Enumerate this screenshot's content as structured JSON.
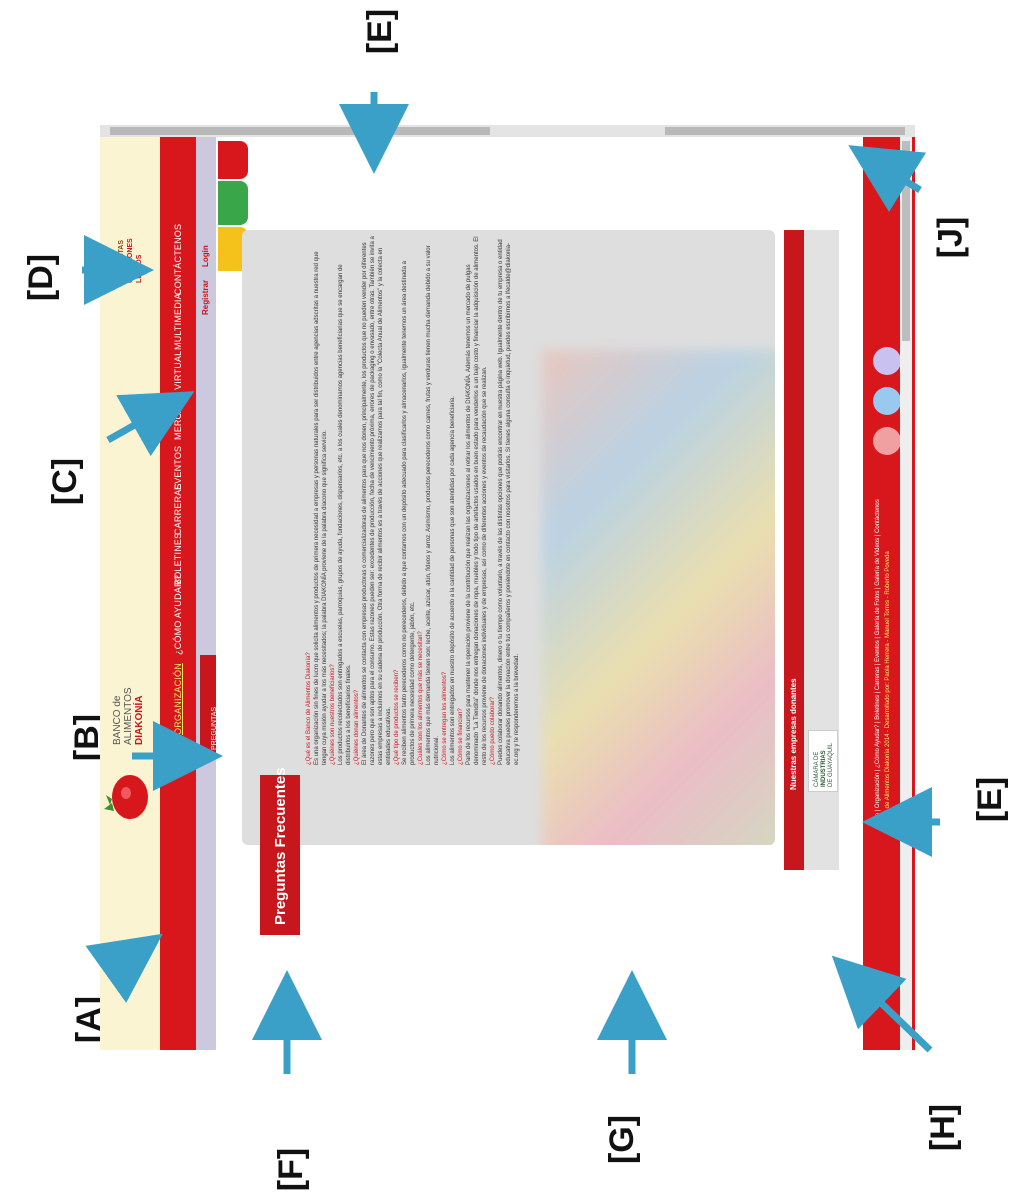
{
  "annotations": {
    "A": "[A]",
    "B": "[B]",
    "C": "[C]",
    "D": "[D]",
    "E_top": "[E]",
    "E_right": "[E]",
    "F": "[F]",
    "G": "[G]",
    "H": "[H]",
    "J": "[J]"
  },
  "brand": {
    "logo_line1": "BANCO de",
    "logo_line2": "ALIMENTOS",
    "logo_line3": "DIAKONÍA",
    "campaign_line1": "PANZAS",
    "campaign_line2": "CONTENTAS",
    "campaign_line3": "CORAZONES",
    "campaign_line4": "LLENOS"
  },
  "nav": {
    "items": [
      {
        "label": "INICIO"
      },
      {
        "label": "ORGANIZACIÓN"
      },
      {
        "label": "¿CÓMO AYUDAR?"
      },
      {
        "label": "BOLETINES"
      },
      {
        "label": "CARRERAS"
      },
      {
        "label": "EVENTOS"
      },
      {
        "label": "MERCADO VIRTUAL"
      },
      {
        "label": "MULTIMEDIA"
      },
      {
        "label": "CONTÁCTENOS"
      }
    ],
    "register": "Registrar",
    "login": "Login",
    "dropdown_item": "PREGUNTAS FRECUENTES"
  },
  "faq": {
    "title": "Preguntas Frecuentes",
    "items": [
      {
        "q": "¿Qué es el Banco de Alimentos Diakonía?",
        "a": "Es una organización sin fines de lucro que solicita alimentos y productos de primera necesidad a empresas y personas naturales para ser distribuidos entre agencias adscritas a nuestra red que tengan cuya misión ayudar a los más necesitados; la palabra DIAKONÍA proviene de la palabra diacono que significa servicio."
      },
      {
        "q": "¿Quiénes son nuestros beneficiarios?",
        "a": "Los productos recolectados son entregados a escuelas, parroquias, grupos de ayuda, fundaciones, dispensarios, etc. a los cuales denominamos agencias beneficiarias que se encargan de distribuirlos a los beneficiarios finales."
      },
      {
        "q": "¿Quiénes donan alimentos?",
        "a": "El área de Donantes de alimentos se contacta con empresas productoras o comercializadoras de alimentos para que nos donen, principalmente, los productos que no pueden vender por diferentes razones pero que son aptos para el consumo. Estas razones pueden ser: excedentes de producción, fecha de vencimiento próxima, errores de packaging o envasado, entre otras. También se invita a estas empresas a incluirnos en su cadena de producción. Otra forma de recibir alimentos es a través de acciones que realizamos para tal fin, como la \"Colecta Anual de Alimentos\" y la colecta en entidades educativas."
      },
      {
        "q": "¿Qué tipo de productos se reciben?",
        "a": "Se reciben alimentos tanto perecederos como no perecederos, debido a que contamos con un depósito adecuado para clasificarlos y almacenarlos, igualmente tenemos un área destinada a productos de primera necesidad como detergente, jabón, etc."
      },
      {
        "q": "¿Cuáles son los alimentos que más se necesitan?",
        "a": "Los alimentos que más demanda tienen son: leche, aceite, azúcar, atún, fideos y arroz. Asimismo, productos perecederos como carnes, frutas y verduras tienen mucha demanda debido a su valor nutricional."
      },
      {
        "q": "¿Cómo se entregan los alimentos?",
        "a": "Los alimentos son entregados en nuestro depósito de acuerdo a la cantidad de personas que son atendidas por cada agencia beneficiaria."
      },
      {
        "q": "¿Cómo se financian?",
        "a": "Parte de los recursos para mantener la operación proviene de la contribución que realizan las organizaciones al retirar los alimentos de DIAKONÍA. Además tenemos un mercado de pulgas denominado \"La Tiendita\" donde nos entregan donaciones de ropa, muebles y todo tipo de artefactos usados en buen estado para venderlos a un bajo costo y financiar la adquisición de alimentos. El resto de los recursos proviene de donaciones individuales y de empresas, así como de diferentes acciones y eventos de recaudación que se realizan."
      },
      {
        "q": "¿Cómo puedo colaborar?",
        "a": "Puedes colaborar donando alimentos, dinero o tu tiempo como voluntario, a través de las distintas opciones que podrás encontrar en nuestra página web. Igualmente dentro de tu empresa o entidad educativa puedes promover la donación entre tus compañeros y poniéndote en contacto con nosotros para visitarlos. Si tienes alguna consulta o inquietud, puedes escribirnos a lfecalde@diakonia-ec.org y te responderemos a la brevedad."
      }
    ]
  },
  "donors": {
    "title": "Nuestras empresas donantes",
    "sponsor_line1": "CÁMARA DE",
    "sponsor_line2": "INDUSTRIAS",
    "sponsor_line3": "DE GUAYAQUIL"
  },
  "footer": {
    "links": "Inicio | Organización | ¿Cómo Ayudar? | Boletines | Carreras | Eventos | Galería de Fotos | Galería de Videos | Contáctenos",
    "copyright": "Banco de Alimentos Diakonía 2014 - Desarrollado por: Paola Herrera - Manuel Torres - Roberto Poveda"
  },
  "colors": {
    "brand_red": "#d8171d",
    "cream": "#fbf4d3",
    "annotation_arrow": "#3aa0c8"
  }
}
